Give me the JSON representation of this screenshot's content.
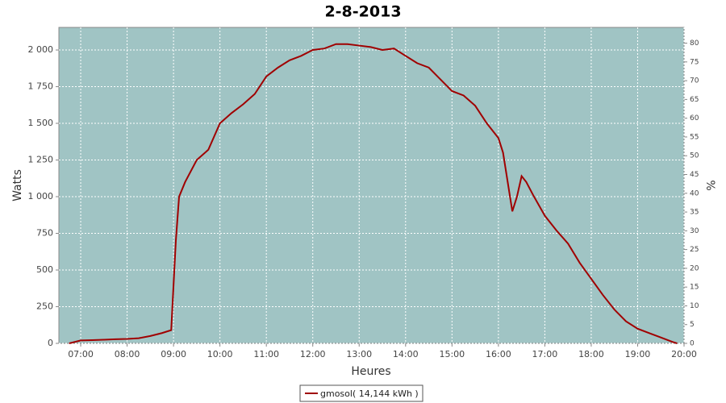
{
  "chart_data": {
    "type": "line",
    "title": "2-8-2013",
    "x_label": "Heures",
    "y_label": "Watts",
    "y2_label": "%",
    "plot_color": "#a0c4c4",
    "grid": true,
    "xlim": [
      6.53,
      20.0
    ],
    "xticks": [
      {
        "value": 7,
        "label": "07:00"
      },
      {
        "value": 8,
        "label": "08:00"
      },
      {
        "value": 9,
        "label": "09:00"
      },
      {
        "value": 10,
        "label": "10:00"
      },
      {
        "value": 11,
        "label": "11:00"
      },
      {
        "value": 12,
        "label": "12:00"
      },
      {
        "value": 13,
        "label": "13:00"
      },
      {
        "value": 14,
        "label": "14:00"
      },
      {
        "value": 15,
        "label": "15:00"
      },
      {
        "value": 16,
        "label": "16:00"
      },
      {
        "value": 17,
        "label": "17:00"
      },
      {
        "value": 18,
        "label": "18:00"
      },
      {
        "value": 19,
        "label": "19:00"
      },
      {
        "value": 20,
        "label": "20:00"
      }
    ],
    "ylim": [
      0,
      2154
    ],
    "yticks": [
      0,
      250,
      500,
      750,
      {
        "value": 1000,
        "label": "1 000"
      },
      {
        "value": 1250,
        "label": "1 250"
      },
      {
        "value": 1500,
        "label": "1 500"
      },
      {
        "value": 1750,
        "label": "1 750"
      },
      {
        "value": 2000,
        "label": "2 000"
      }
    ],
    "y2lim": [
      0,
      84.2
    ],
    "y2ticks": [
      0,
      5,
      10,
      15,
      20,
      25,
      30,
      35,
      40,
      45,
      50,
      55,
      60,
      65,
      70,
      75,
      80
    ],
    "x": [
      6.75,
      7.0,
      7.25,
      7.5,
      7.75,
      8.0,
      8.25,
      8.5,
      8.75,
      8.95,
      9.05,
      9.12,
      9.25,
      9.5,
      9.75,
      10.0,
      10.25,
      10.5,
      10.75,
      11.0,
      11.25,
      11.5,
      11.75,
      12.0,
      12.25,
      12.5,
      12.75,
      13.0,
      13.25,
      13.5,
      13.75,
      14.0,
      14.25,
      14.5,
      14.75,
      15.0,
      15.25,
      15.5,
      15.75,
      16.0,
      16.1,
      16.2,
      16.3,
      16.4,
      16.5,
      16.6,
      16.75,
      17.0,
      17.25,
      17.5,
      17.75,
      18.0,
      18.25,
      18.5,
      18.75,
      19.0,
      19.25,
      19.5,
      19.75,
      19.85
    ],
    "series": [
      {
        "name": "gmosol( 14,144 kWh )",
        "color": "#a00000",
        "values": [
          0,
          20,
          22,
          25,
          28,
          30,
          35,
          50,
          70,
          90,
          700,
          1000,
          1100,
          1250,
          1320,
          1500,
          1570,
          1630,
          1700,
          1820,
          1880,
          1930,
          1960,
          2000,
          2010,
          2040,
          2040,
          2030,
          2020,
          2000,
          2010,
          1960,
          1910,
          1880,
          1800,
          1720,
          1690,
          1620,
          1500,
          1400,
          1300,
          1100,
          900,
          1000,
          1140,
          1100,
          1010,
          870,
          770,
          680,
          550,
          440,
          330,
          230,
          150,
          100,
          70,
          40,
          10,
          0
        ]
      }
    ]
  }
}
